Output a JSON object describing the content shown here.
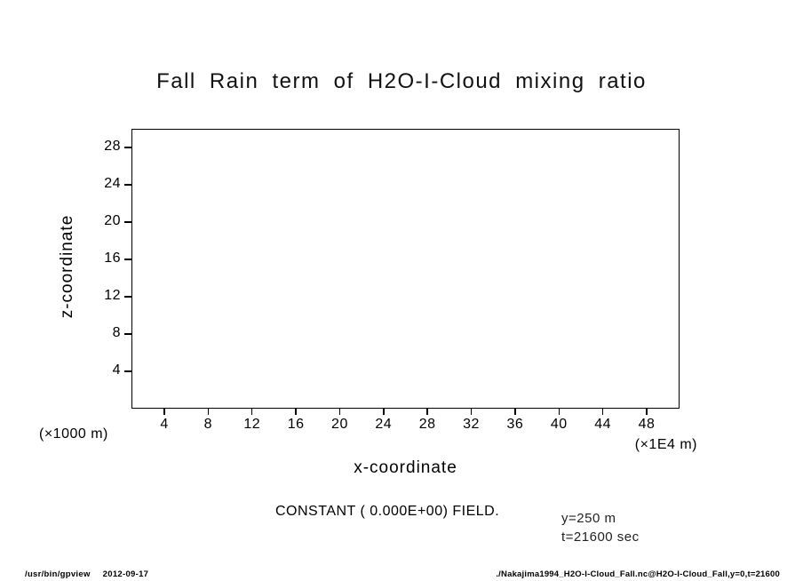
{
  "window": {
    "background": "#ffffff",
    "line_color": "#000000"
  },
  "chart_data": {
    "type": "heatmap",
    "title": "Fall Rain term of H2O-I-Cloud mixing ratio",
    "xlabel": "x-coordinate",
    "ylabel": "z-coordinate",
    "x_unit_label": "(×1E4 m)",
    "y_unit_label": "(×1000 m)",
    "x_ticks": [
      4,
      8,
      12,
      16,
      20,
      24,
      28,
      32,
      36,
      40,
      44,
      48
    ],
    "y_ticks": [
      4,
      8,
      12,
      16,
      20,
      24,
      28
    ],
    "xlim": [
      1,
      51
    ],
    "ylim": [
      0,
      30
    ],
    "grid": false,
    "legend": "none",
    "field_note": "CONSTANT ( 0.000E+00) FIELD.",
    "constant_value": 0,
    "constant_value_scientific": "0.000E+00",
    "slice_y": "y=250 m",
    "slice_t": "t=21600 sec"
  },
  "footer": {
    "command": "/usr/bin/gpview",
    "date": "2012-09-17",
    "file": "./Nakajima1994_H2O-I-Cloud_Fall.nc@H2O-I-Cloud_Fall,y=0,t=21600"
  }
}
